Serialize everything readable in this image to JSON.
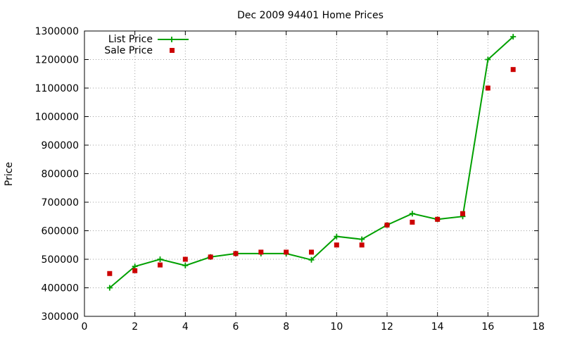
{
  "chart_data": {
    "type": "line",
    "title": "Dec 2009 94401 Home Prices",
    "xlabel": "",
    "ylabel": "Price",
    "xlim": [
      0,
      18
    ],
    "ylim": [
      300000,
      1300000
    ],
    "xticks": [
      0,
      2,
      4,
      6,
      8,
      10,
      12,
      14,
      16,
      18
    ],
    "yticks": [
      300000,
      400000,
      500000,
      600000,
      700000,
      800000,
      900000,
      1000000,
      1100000,
      1200000,
      1300000
    ],
    "grid": true,
    "legend_position": "top-left",
    "series": [
      {
        "name": "List Price",
        "style": "line-with-plus-markers",
        "color": "#00a000",
        "x": [
          1,
          2,
          3,
          4,
          5,
          6,
          7,
          8,
          9,
          10,
          11,
          12,
          13,
          14,
          15,
          16,
          17
        ],
        "y": [
          400000,
          475000,
          500000,
          478000,
          508000,
          520000,
          520000,
          520000,
          498000,
          580000,
          570000,
          620000,
          660000,
          640000,
          650000,
          1200000,
          1280000
        ]
      },
      {
        "name": "Sale Price",
        "style": "square-markers",
        "color": "#cc0000",
        "x": [
          1,
          2,
          3,
          4,
          5,
          6,
          7,
          8,
          9,
          10,
          11,
          12,
          13,
          14,
          15,
          16,
          17
        ],
        "y": [
          450000,
          460000,
          480000,
          500000,
          508000,
          520000,
          525000,
          525000,
          525000,
          550000,
          550000,
          620000,
          630000,
          640000,
          660000,
          1100000,
          1165000
        ]
      }
    ]
  }
}
